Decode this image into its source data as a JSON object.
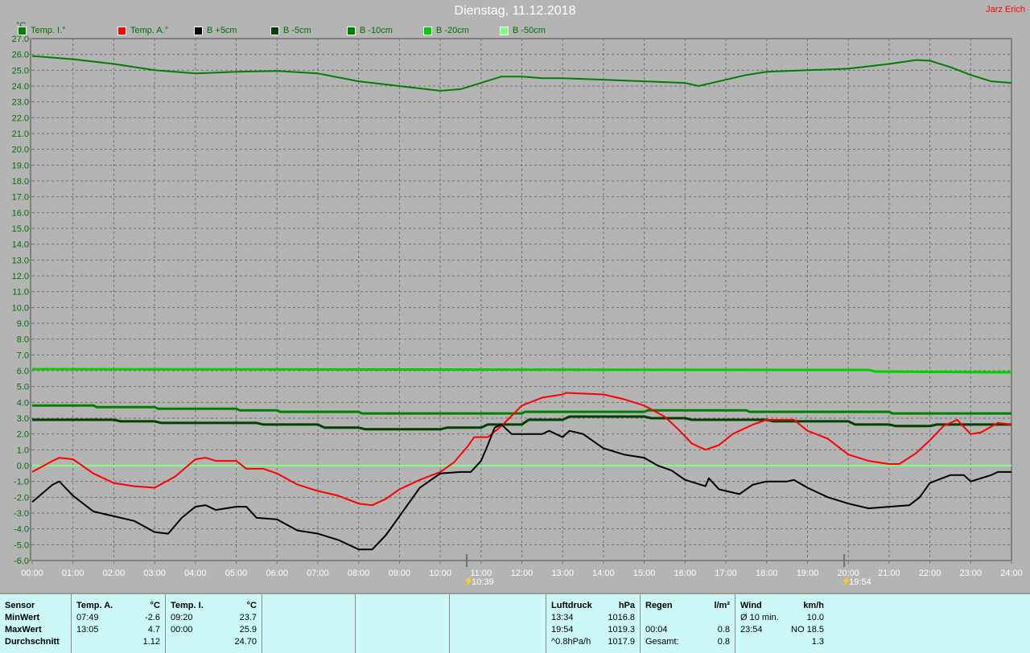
{
  "header": {
    "title": "Dienstag, 11.12.2018",
    "author": "Jarz Erich",
    "unit": "°C"
  },
  "legend": [
    {
      "label": "Temp. I.°",
      "color": "#008000"
    },
    {
      "label": "Temp. A.°",
      "color": "#ff0000"
    },
    {
      "label": "B +5cm",
      "color": "#000000"
    },
    {
      "label": "B -5cm",
      "color": "#004000"
    },
    {
      "label": "B -10cm",
      "color": "#008000"
    },
    {
      "label": "B -20cm",
      "color": "#00d000"
    },
    {
      "label": "B -50cm",
      "color": "#80ff80"
    }
  ],
  "markers": [
    {
      "icon": "sunrise-icon",
      "label": "10:39",
      "time": "10:39"
    },
    {
      "icon": "sunset-icon",
      "label": "19:54",
      "time": "19:54"
    }
  ],
  "chart_data": {
    "type": "line",
    "title": "Dienstag, 11.12.2018",
    "ylabel": "°C",
    "ylim": [
      -6,
      27
    ],
    "xlim": [
      "00:00",
      "24:00"
    ],
    "grid": true,
    "legend": "top",
    "x_ticks": [
      "00:00",
      "01:00",
      "02:00",
      "03:00",
      "04:00",
      "05:00",
      "06:00",
      "07:00",
      "08:00",
      "09:00",
      "10:00",
      "11:00",
      "12:00",
      "13:00",
      "14:00",
      "15:00",
      "16:00",
      "17:00",
      "18:00",
      "19:00",
      "20:00",
      "21:00",
      "22:00",
      "23:00",
      "24:00"
    ],
    "y_ticks": [
      "27.0",
      "26.0",
      "25.0",
      "24.0",
      "23.0",
      "22.0",
      "21.0",
      "20.0",
      "19.0",
      "18.0",
      "17.0",
      "16.0",
      "15.0",
      "14.0",
      "13.0",
      "12.0",
      "11.0",
      "10.0",
      "9.0",
      "8.0",
      "7.0",
      "6.0",
      "5.0",
      "4.0",
      "3.0",
      "2.0",
      "1.0",
      "0.0",
      "-1.0",
      "-2.0",
      "-3.0",
      "-4.0",
      "-5.0",
      "-6.0"
    ],
    "series": [
      {
        "name": "Temp. I.°",
        "color": "#008000",
        "points": [
          [
            "00:00",
            25.9
          ],
          [
            "01:00",
            25.7
          ],
          [
            "02:00",
            25.4
          ],
          [
            "03:00",
            25.0
          ],
          [
            "04:00",
            24.8
          ],
          [
            "05:00",
            24.9
          ],
          [
            "06:00",
            24.95
          ],
          [
            "07:00",
            24.8
          ],
          [
            "08:00",
            24.3
          ],
          [
            "09:00",
            24.0
          ],
          [
            "10:00",
            23.7
          ],
          [
            "10:30",
            23.8
          ],
          [
            "11:00",
            24.2
          ],
          [
            "11:30",
            24.6
          ],
          [
            "12:00",
            24.6
          ],
          [
            "12:30",
            24.5
          ],
          [
            "13:00",
            24.5
          ],
          [
            "14:00",
            24.4
          ],
          [
            "15:00",
            24.3
          ],
          [
            "16:00",
            24.2
          ],
          [
            "16:20",
            24.0
          ],
          [
            "17:00",
            24.4
          ],
          [
            "17:30",
            24.7
          ],
          [
            "18:00",
            24.9
          ],
          [
            "19:00",
            25.0
          ],
          [
            "20:00",
            25.1
          ],
          [
            "21:00",
            25.4
          ],
          [
            "21:40",
            25.65
          ],
          [
            "22:00",
            25.6
          ],
          [
            "22:30",
            25.2
          ],
          [
            "23:00",
            24.7
          ],
          [
            "23:30",
            24.3
          ],
          [
            "24:00",
            24.2
          ]
        ]
      },
      {
        "name": "B -20cm",
        "color": "#00d000",
        "points": [
          [
            "00:00",
            6.1
          ],
          [
            "20:30",
            6.05
          ],
          [
            "20:40",
            5.95
          ],
          [
            "24:00",
            5.9
          ]
        ]
      },
      {
        "name": "B -50cm",
        "color": "#80ff80",
        "points": [
          [
            "00:00",
            0.0
          ],
          [
            "24:00",
            0.0
          ]
        ]
      },
      {
        "name": "B -10cm",
        "color": "#008000",
        "points": [
          [
            "00:00",
            3.8
          ],
          [
            "01:30",
            3.8
          ],
          [
            "01:35",
            3.7
          ],
          [
            "03:00",
            3.7
          ],
          [
            "03:05",
            3.6
          ],
          [
            "05:00",
            3.6
          ],
          [
            "05:05",
            3.5
          ],
          [
            "06:00",
            3.5
          ],
          [
            "06:05",
            3.4
          ],
          [
            "08:00",
            3.4
          ],
          [
            "08:05",
            3.3
          ],
          [
            "12:00",
            3.3
          ],
          [
            "12:05",
            3.4
          ],
          [
            "15:00",
            3.4
          ],
          [
            "15:05",
            3.5
          ],
          [
            "17:30",
            3.5
          ],
          [
            "17:35",
            3.4
          ],
          [
            "21:00",
            3.4
          ],
          [
            "21:05",
            3.3
          ],
          [
            "24:00",
            3.3
          ]
        ]
      },
      {
        "name": "B -5cm",
        "color": "#004000",
        "points": [
          [
            "00:00",
            2.9
          ],
          [
            "02:00",
            2.9
          ],
          [
            "02:10",
            2.8
          ],
          [
            "03:00",
            2.8
          ],
          [
            "03:10",
            2.7
          ],
          [
            "05:30",
            2.7
          ],
          [
            "05:40",
            2.6
          ],
          [
            "07:00",
            2.6
          ],
          [
            "07:10",
            2.4
          ],
          [
            "08:00",
            2.4
          ],
          [
            "08:10",
            2.3
          ],
          [
            "10:00",
            2.3
          ],
          [
            "10:10",
            2.4
          ],
          [
            "11:00",
            2.4
          ],
          [
            "11:10",
            2.6
          ],
          [
            "12:00",
            2.6
          ],
          [
            "12:10",
            2.9
          ],
          [
            "13:00",
            2.9
          ],
          [
            "13:10",
            3.1
          ],
          [
            "15:00",
            3.1
          ],
          [
            "15:10",
            3.0
          ],
          [
            "16:00",
            3.0
          ],
          [
            "16:10",
            2.9
          ],
          [
            "18:00",
            2.9
          ],
          [
            "18:10",
            2.8
          ],
          [
            "20:00",
            2.8
          ],
          [
            "20:10",
            2.6
          ],
          [
            "21:00",
            2.6
          ],
          [
            "21:10",
            2.5
          ],
          [
            "22:00",
            2.5
          ],
          [
            "22:10",
            2.6
          ],
          [
            "24:00",
            2.6
          ]
        ]
      },
      {
        "name": "Temp. A.°",
        "color": "#ff0000",
        "points": [
          [
            "00:00",
            -0.4
          ],
          [
            "00:30",
            0.3
          ],
          [
            "00:40",
            0.5
          ],
          [
            "01:00",
            0.4
          ],
          [
            "01:30",
            -0.5
          ],
          [
            "02:00",
            -1.1
          ],
          [
            "02:30",
            -1.3
          ],
          [
            "03:00",
            -1.4
          ],
          [
            "03:30",
            -0.7
          ],
          [
            "04:00",
            0.4
          ],
          [
            "04:15",
            0.5
          ],
          [
            "04:30",
            0.3
          ],
          [
            "05:00",
            0.3
          ],
          [
            "05:15",
            -0.2
          ],
          [
            "05:40",
            -0.2
          ],
          [
            "06:00",
            -0.5
          ],
          [
            "06:30",
            -1.2
          ],
          [
            "07:00",
            -1.6
          ],
          [
            "07:30",
            -1.9
          ],
          [
            "08:00",
            -2.4
          ],
          [
            "08:20",
            -2.5
          ],
          [
            "08:40",
            -2.1
          ],
          [
            "09:00",
            -1.5
          ],
          [
            "09:30",
            -0.9
          ],
          [
            "10:00",
            -0.4
          ],
          [
            "10:20",
            0.2
          ],
          [
            "10:40",
            1.2
          ],
          [
            "10:50",
            1.8
          ],
          [
            "11:10",
            1.8
          ],
          [
            "11:30",
            2.5
          ],
          [
            "12:00",
            3.8
          ],
          [
            "12:30",
            4.3
          ],
          [
            "13:00",
            4.5
          ],
          [
            "13:05",
            4.6
          ],
          [
            "14:00",
            4.5
          ],
          [
            "14:30",
            4.2
          ],
          [
            "15:00",
            3.8
          ],
          [
            "15:30",
            3.1
          ],
          [
            "15:50",
            2.3
          ],
          [
            "16:10",
            1.4
          ],
          [
            "16:30",
            1.0
          ],
          [
            "16:50",
            1.3
          ],
          [
            "17:10",
            2.0
          ],
          [
            "17:40",
            2.6
          ],
          [
            "18:00",
            2.9
          ],
          [
            "18:40",
            2.9
          ],
          [
            "19:00",
            2.2
          ],
          [
            "19:30",
            1.7
          ],
          [
            "20:00",
            0.7
          ],
          [
            "20:30",
            0.3
          ],
          [
            "21:00",
            0.1
          ],
          [
            "21:15",
            0.1
          ],
          [
            "21:40",
            0.8
          ],
          [
            "22:00",
            1.6
          ],
          [
            "22:20",
            2.5
          ],
          [
            "22:40",
            2.9
          ],
          [
            "23:00",
            2.0
          ],
          [
            "23:15",
            2.1
          ],
          [
            "23:40",
            2.7
          ],
          [
            "24:00",
            2.6
          ]
        ]
      },
      {
        "name": "B +5cm",
        "color": "#000000",
        "points": [
          [
            "00:00",
            -2.3
          ],
          [
            "00:30",
            -1.2
          ],
          [
            "00:40",
            -1.0
          ],
          [
            "01:00",
            -1.9
          ],
          [
            "01:30",
            -2.9
          ],
          [
            "02:00",
            -3.2
          ],
          [
            "02:30",
            -3.5
          ],
          [
            "03:00",
            -4.2
          ],
          [
            "03:20",
            -4.3
          ],
          [
            "03:40",
            -3.3
          ],
          [
            "04:00",
            -2.6
          ],
          [
            "04:15",
            -2.5
          ],
          [
            "04:30",
            -2.8
          ],
          [
            "05:00",
            -2.6
          ],
          [
            "05:15",
            -2.6
          ],
          [
            "05:30",
            -3.3
          ],
          [
            "06:00",
            -3.4
          ],
          [
            "06:30",
            -4.1
          ],
          [
            "07:00",
            -4.3
          ],
          [
            "07:30",
            -4.7
          ],
          [
            "08:00",
            -5.3
          ],
          [
            "08:20",
            -5.3
          ],
          [
            "08:40",
            -4.4
          ],
          [
            "09:00",
            -3.2
          ],
          [
            "09:30",
            -1.4
          ],
          [
            "10:00",
            -0.5
          ],
          [
            "10:30",
            -0.4
          ],
          [
            "10:45",
            -0.4
          ],
          [
            "11:00",
            0.3
          ],
          [
            "11:10",
            1.3
          ],
          [
            "11:20",
            2.4
          ],
          [
            "11:30",
            2.6
          ],
          [
            "11:45",
            2.0
          ],
          [
            "12:30",
            2.0
          ],
          [
            "12:40",
            2.2
          ],
          [
            "13:00",
            1.8
          ],
          [
            "13:10",
            2.2
          ],
          [
            "13:30",
            2.0
          ],
          [
            "14:00",
            1.1
          ],
          [
            "14:30",
            0.7
          ],
          [
            "15:00",
            0.5
          ],
          [
            "15:20",
            0.0
          ],
          [
            "15:40",
            -0.3
          ],
          [
            "16:00",
            -0.9
          ],
          [
            "16:30",
            -1.3
          ],
          [
            "16:35",
            -0.8
          ],
          [
            "16:50",
            -1.5
          ],
          [
            "17:20",
            -1.8
          ],
          [
            "17:40",
            -1.2
          ],
          [
            "18:00",
            -1.0
          ],
          [
            "18:30",
            -1.0
          ],
          [
            "18:40",
            -0.9
          ],
          [
            "19:00",
            -1.4
          ],
          [
            "19:30",
            -2.0
          ],
          [
            "20:00",
            -2.4
          ],
          [
            "20:30",
            -2.7
          ],
          [
            "21:00",
            -2.6
          ],
          [
            "21:30",
            -2.5
          ],
          [
            "21:45",
            -2.0
          ],
          [
            "22:00",
            -1.1
          ],
          [
            "22:30",
            -0.6
          ],
          [
            "22:50",
            -0.6
          ],
          [
            "23:00",
            -1.0
          ],
          [
            "23:30",
            -0.6
          ],
          [
            "23:40",
            -0.4
          ],
          [
            "24:00",
            -0.4
          ]
        ]
      }
    ]
  },
  "table": {
    "sensor": {
      "h": "Sensor",
      "r1": "MinWert",
      "r2": "MaxWert",
      "r3": "Durchschnitt"
    },
    "temp_a": {
      "h": "Temp. A.",
      "u": "°C",
      "min_t": "07:49",
      "min": "-2.6",
      "max_t": "13:05",
      "max": "4.7",
      "avg": "1.12"
    },
    "temp_i": {
      "h": "Temp. I.",
      "u": "°C",
      "min_t": "09:20",
      "min": "23.7",
      "max_t": "00:00",
      "max": "25.9",
      "avg": "24.70"
    },
    "druck": {
      "h": "Luftdruck",
      "u": "hPa",
      "t1": "13:34",
      "v1": "1016.8",
      "t2": "19:54",
      "v2": "1019.3",
      "t3": "^0.8hPa/h",
      "v3": "1017.9"
    },
    "regen": {
      "h": "Regen",
      "u": "l/m²",
      "t2": "00:04",
      "v2": "0.8",
      "t3": "Gesamt:",
      "v3": "0.8"
    },
    "wind": {
      "h": "Wind",
      "u": "km/h",
      "t1": "Ø 10 min.",
      "v1": "10.0",
      "t2": "23:54",
      "v2": "NO 18.5",
      "v3": "1.3"
    }
  }
}
